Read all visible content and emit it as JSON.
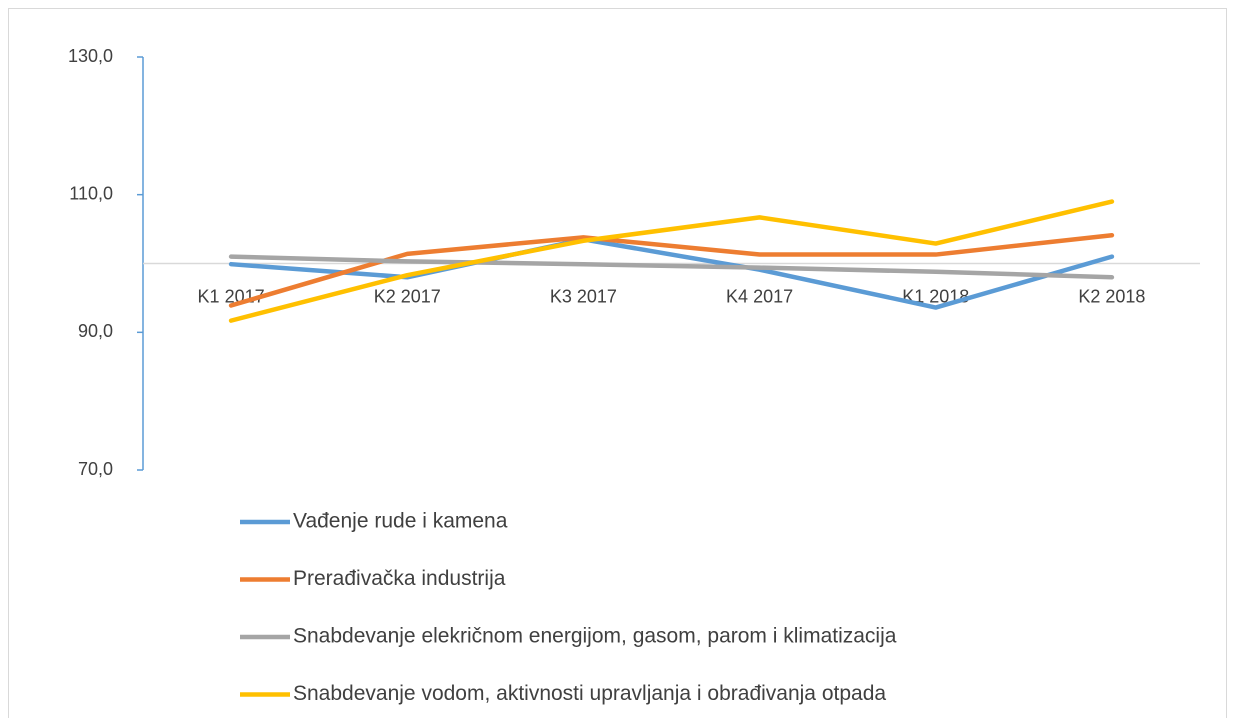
{
  "chart_data": {
    "type": "line",
    "categories": [
      "K1  2017",
      "K2 2017",
      "K3  2017",
      "K4  2017",
      "K1 2018",
      "K2 2018"
    ],
    "series": [
      {
        "name": "Vađenje rude i kamena",
        "color": "#5b9bd5",
        "values": [
          99.9,
          98.0,
          103.5,
          99.1,
          93.6,
          101.0
        ]
      },
      {
        "name": "Prerađivačka industrija",
        "color": "#ed7d31",
        "values": [
          93.9,
          101.4,
          103.8,
          101.3,
          101.3,
          104.1
        ]
      },
      {
        "name": "Snabdevanje elekričnom energijom, gasom, parom i klimatizacija",
        "color": "#a5a5a5",
        "values": [
          101.0,
          100.3,
          99.9,
          99.4,
          98.8,
          98.0
        ]
      },
      {
        "name": "Snabdevanje vodom, aktivnosti upravljanja i obrađivanja  otpada",
        "color": "#ffc000",
        "values": [
          91.7,
          98.3,
          103.3,
          106.7,
          102.9,
          109.0
        ]
      }
    ],
    "ylim": [
      70,
      130
    ],
    "yticks": [
      {
        "value": 70,
        "label": "70,0"
      },
      {
        "value": 90,
        "label": "90,0"
      },
      {
        "value": 110,
        "label": "110,0"
      },
      {
        "value": 130,
        "label": "130,0"
      }
    ],
    "x_axis_crosses_at": 100,
    "legend": "bottom"
  }
}
